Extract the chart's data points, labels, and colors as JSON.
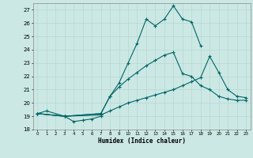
{
  "xlabel": "Humidex (Indice chaleur)",
  "bg_color": "#cce8e4",
  "line_color": "#006666",
  "grid_color": "#b0d4d0",
  "xlim": [
    -0.5,
    23.5
  ],
  "ylim": [
    18,
    27.5
  ],
  "xticks": [
    0,
    1,
    2,
    3,
    4,
    5,
    6,
    7,
    8,
    9,
    10,
    11,
    12,
    13,
    14,
    15,
    16,
    17,
    18,
    19,
    20,
    21,
    22,
    23
  ],
  "yticks": [
    18,
    19,
    20,
    21,
    22,
    23,
    24,
    25,
    26,
    27
  ],
  "series1_x": [
    0,
    1,
    3,
    4,
    5,
    6,
    7
  ],
  "series1_y": [
    19.2,
    19.4,
    19.0,
    18.6,
    18.7,
    18.8,
    19.0
  ],
  "series2_x": [
    0,
    3,
    7,
    8,
    9,
    10,
    11,
    12,
    13,
    14,
    15,
    16,
    17,
    18,
    19,
    20,
    21,
    22,
    23
  ],
  "series2_y": [
    19.2,
    19.0,
    19.1,
    19.4,
    19.7,
    20.0,
    20.2,
    20.4,
    20.6,
    20.8,
    21.0,
    21.3,
    21.6,
    21.9,
    23.5,
    22.3,
    21.0,
    20.5,
    20.4
  ],
  "series3_x": [
    0,
    3,
    7,
    8,
    9,
    10,
    11,
    12,
    13,
    14,
    15,
    16,
    17,
    18,
    19,
    20,
    21,
    22,
    23
  ],
  "series3_y": [
    19.2,
    19.0,
    19.2,
    20.5,
    21.2,
    21.8,
    22.3,
    22.8,
    23.2,
    23.6,
    23.8,
    22.2,
    22.0,
    21.3,
    21.0,
    20.5,
    20.3,
    20.2,
    20.2
  ],
  "series4_x": [
    0,
    3,
    7,
    8,
    9,
    10,
    11,
    12,
    13,
    14,
    15,
    16,
    17,
    18
  ],
  "series4_y": [
    19.2,
    19.0,
    19.2,
    20.5,
    21.5,
    23.0,
    24.5,
    26.3,
    25.8,
    26.3,
    27.3,
    26.3,
    26.1,
    24.3
  ]
}
